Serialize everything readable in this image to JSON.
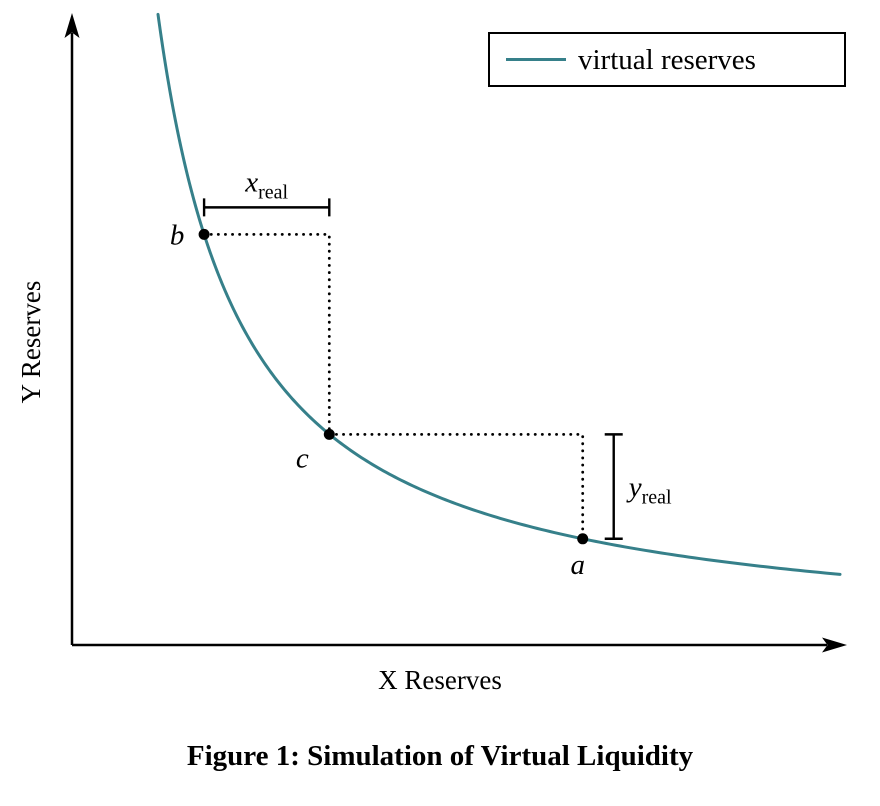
{
  "figure": {
    "caption": "Figure 1: Simulation of Virtual Liquidity"
  },
  "chart_data": {
    "type": "line",
    "title": "",
    "xlabel": "X Reserves",
    "ylabel": "Y Reserves",
    "xlim": [
      0,
      10
    ],
    "ylim": [
      0,
      10
    ],
    "grid": false,
    "axis_ticks": "none",
    "legend": {
      "position": "upper right",
      "entries": [
        {
          "label": "virtual reserves",
          "color": "#36808A"
        }
      ]
    },
    "curve": {
      "equation": "x * y = k (constant product hyperbola)",
      "k": 11.3,
      "x_start": 1.12,
      "x_end": 10.0
    },
    "points": [
      {
        "id": "b",
        "label": "b",
        "x": 1.72,
        "y": 6.57
      },
      {
        "id": "c",
        "label": "c",
        "x": 3.35,
        "y": 3.37
      },
      {
        "id": "a",
        "label": "a",
        "x": 6.65,
        "y": 1.7
      }
    ],
    "guides": [
      {
        "from": "b",
        "to": "c"
      },
      {
        "from": "c",
        "to": "a"
      }
    ],
    "annotations": [
      {
        "id": "x_real",
        "var": "x",
        "sub": "real",
        "axis": "x",
        "from": "b",
        "to": "c"
      },
      {
        "id": "y_real",
        "var": "y",
        "sub": "real",
        "axis": "y",
        "from": "c",
        "to": "a"
      }
    ]
  }
}
